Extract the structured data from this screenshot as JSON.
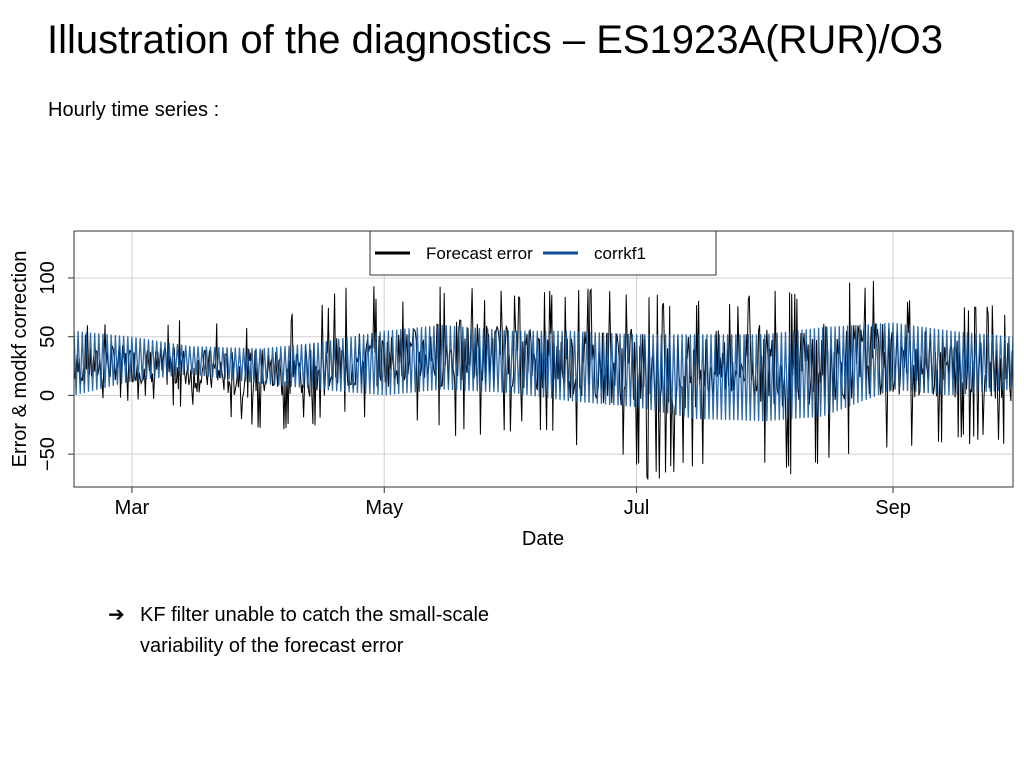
{
  "slide": {
    "title": "Illustration of the diagnostics – ES1923A(RUR)/O3",
    "subtitle": "Hourly time series :",
    "bullet_arrow": "➔",
    "bullet_line1": "KF filter unable to catch the small-scale",
    "bullet_line2": "variability of the forecast error"
  },
  "chart_data": {
    "type": "line",
    "title": "",
    "xlabel": "Date",
    "ylabel": "Error & modkf correction",
    "x_range": [
      "2009-02-15",
      "2009-09-30"
    ],
    "ylim": [
      -78,
      140
    ],
    "x_ticks": [
      {
        "label": "Mar",
        "date": "2009-03-01"
      },
      {
        "label": "May",
        "date": "2009-05-01"
      },
      {
        "label": "Jul",
        "date": "2009-07-01"
      },
      {
        "label": "Sep",
        "date": "2009-09-01"
      }
    ],
    "y_ticks": [
      -50,
      0,
      50,
      100
    ],
    "grid": true,
    "legend_position": "top-center",
    "series": [
      {
        "name": "Forecast error",
        "color": "#000000",
        "sampling": "daily mean with daily min/max envelope",
        "points": [
          [
            "2009-02-15",
            22,
            -10,
            60
          ],
          [
            "2009-02-25",
            28,
            -5,
            65
          ],
          [
            "2009-03-05",
            25,
            -8,
            60
          ],
          [
            "2009-03-15",
            22,
            -15,
            72
          ],
          [
            "2009-03-25",
            18,
            -22,
            65
          ],
          [
            "2009-04-05",
            20,
            -35,
            68
          ],
          [
            "2009-04-15",
            22,
            -25,
            78
          ],
          [
            "2009-04-25",
            28,
            -20,
            100
          ],
          [
            "2009-05-05",
            32,
            -18,
            80
          ],
          [
            "2009-05-15",
            36,
            -35,
            95
          ],
          [
            "2009-05-25",
            35,
            -40,
            90
          ],
          [
            "2009-06-05",
            32,
            -30,
            88
          ],
          [
            "2009-06-15",
            28,
            -45,
            92
          ],
          [
            "2009-06-25",
            25,
            -50,
            95
          ],
          [
            "2009-07-05",
            22,
            -75,
            88
          ],
          [
            "2009-07-15",
            20,
            -60,
            80
          ],
          [
            "2009-07-25",
            28,
            -55,
            85
          ],
          [
            "2009-08-05",
            26,
            -70,
            90
          ],
          [
            "2009-08-15",
            28,
            -60,
            95
          ],
          [
            "2009-08-25",
            30,
            -50,
            100
          ],
          [
            "2009-09-05",
            28,
            -45,
            88
          ],
          [
            "2009-09-15",
            24,
            -40,
            80
          ],
          [
            "2009-09-30",
            22,
            -45,
            75
          ]
        ]
      },
      {
        "name": "corrkf1",
        "color": "#0a4f96",
        "sampling": "daily mean with diurnal amplitude envelope",
        "points": [
          [
            "2009-02-15",
            25,
            0,
            55
          ],
          [
            "2009-03-01",
            28,
            12,
            50
          ],
          [
            "2009-03-15",
            28,
            18,
            42
          ],
          [
            "2009-04-01",
            25,
            10,
            40
          ],
          [
            "2009-04-15",
            25,
            5,
            45
          ],
          [
            "2009-05-01",
            28,
            0,
            55
          ],
          [
            "2009-05-15",
            32,
            5,
            60
          ],
          [
            "2009-06-01",
            30,
            2,
            55
          ],
          [
            "2009-06-15",
            28,
            -5,
            55
          ],
          [
            "2009-07-01",
            25,
            -10,
            52
          ],
          [
            "2009-07-15",
            20,
            -20,
            52
          ],
          [
            "2009-08-01",
            18,
            -22,
            52
          ],
          [
            "2009-08-15",
            22,
            -18,
            58
          ],
          [
            "2009-09-01",
            30,
            5,
            62
          ],
          [
            "2009-09-15",
            28,
            0,
            55
          ],
          [
            "2009-09-30",
            28,
            5,
            50
          ]
        ]
      }
    ]
  }
}
